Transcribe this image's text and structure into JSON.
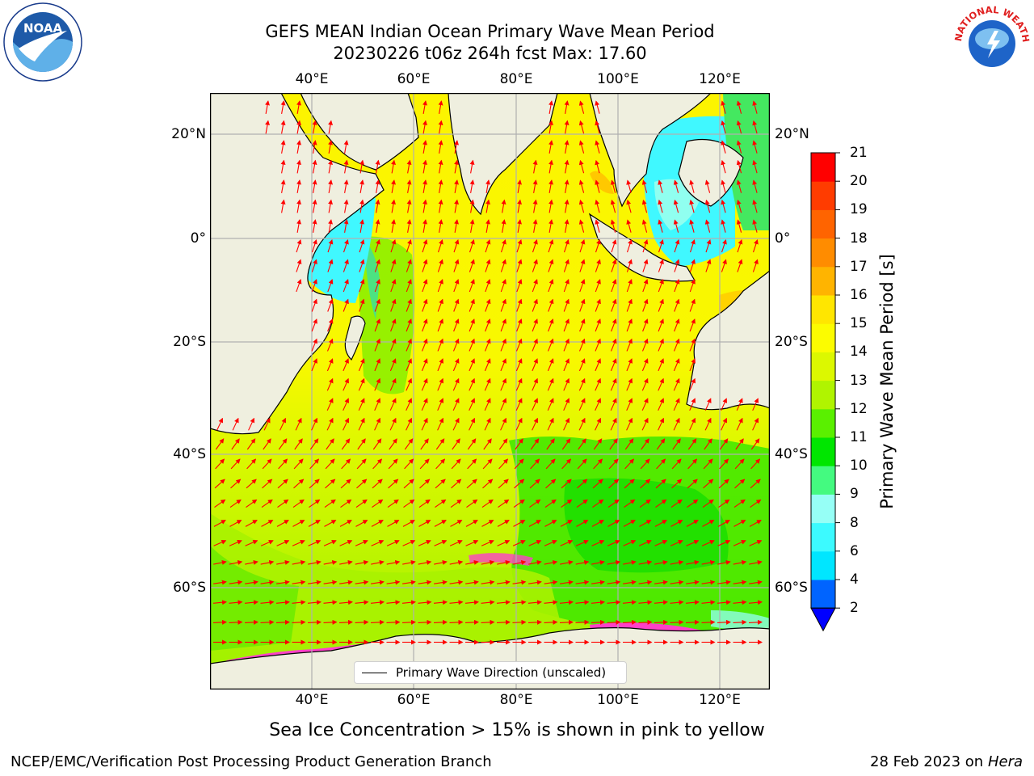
{
  "title": {
    "line1": "GEFS MEAN Indian Ocean Primary Wave Mean Period",
    "line2": "20230226 t06z 264h fcst   Max: 17.60"
  },
  "map": {
    "lon_labels": [
      "40°E",
      "60°E",
      "80°E",
      "100°E",
      "120°E"
    ],
    "lat_labels": [
      "20°N",
      "0°",
      "20°S",
      "40°S",
      "60°S"
    ],
    "legend_label": "Primary Wave Direction (unscaled)",
    "arrow_color": "#ff0000",
    "land_color": "#efefdf",
    "gridline_color": "#b0b0b0"
  },
  "colorbar": {
    "title": "Primary Wave Mean Period [s]",
    "ticks": [
      "2",
      "4",
      "6",
      "8",
      "9",
      "10",
      "11",
      "12",
      "13",
      "14",
      "15",
      "16",
      "17",
      "18",
      "19",
      "20",
      "21"
    ],
    "colors": [
      "#0064ff",
      "#00e6ff",
      "#3cfaff",
      "#96fff6",
      "#44fa80",
      "#00e600",
      "#5af000",
      "#b0f400",
      "#dcf800",
      "#fcfc00",
      "#ffe600",
      "#ffb400",
      "#ff8c00",
      "#ff6400",
      "#ff3c00",
      "#ff0000"
    ],
    "extend_color": "#0000ff"
  },
  "ice_note": "Sea Ice Concentration > 15% is shown in pink to yellow",
  "footer": {
    "left": "NCEP/EMC/Verification Post Processing Product Generation Branch",
    "date": "28 Feb 2023 on",
    "machine": "Hera"
  },
  "logos": {
    "noaa_text": "NOAA",
    "nws_text": "NATIONAL WEATHER SERVICE"
  }
}
